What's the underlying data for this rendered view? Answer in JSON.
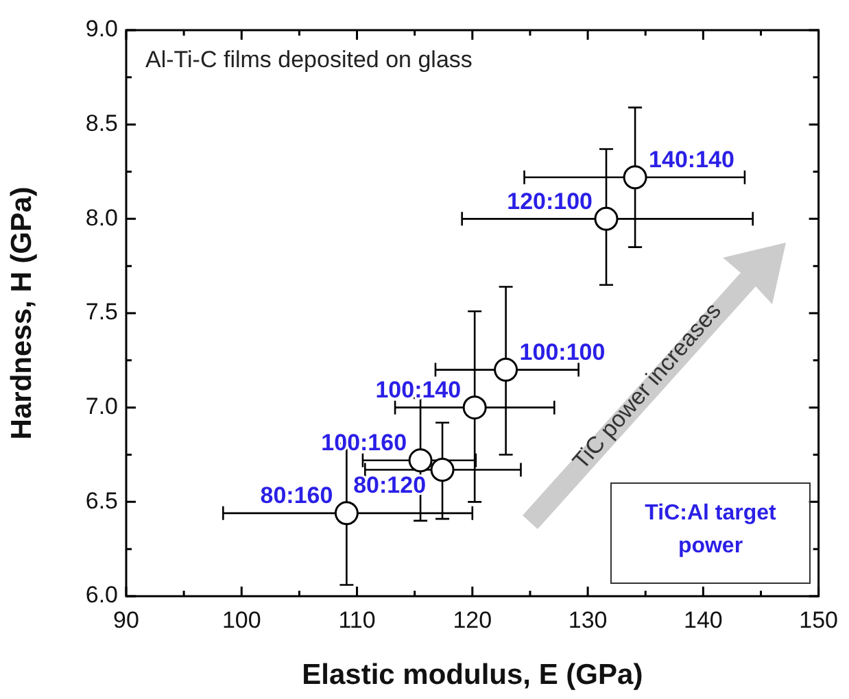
{
  "chart_data": {
    "type": "scatter",
    "xlabel": "Elastic modulus, E (GPa)",
    "ylabel": "Hardness, H (GPa)",
    "x": [
      109.1,
      115.5,
      117.4,
      120.2,
      122.9,
      131.6,
      134.1
    ],
    "values": [
      6.44,
      6.72,
      6.67,
      7.0,
      7.2,
      8.0,
      8.22
    ],
    "value_labels": [
      "80:160",
      "100:160",
      "80:120",
      "100:140",
      "100:100",
      "120:100",
      "140:140"
    ],
    "errors": [
      [
        6.06,
        6.81
      ],
      [
        6.4,
        7.05
      ],
      [
        6.41,
        6.92
      ],
      [
        6.5,
        7.51
      ],
      [
        6.75,
        7.64
      ],
      [
        7.65,
        8.37
      ],
      [
        7.85,
        8.59
      ]
    ],
    "xerrors": [
      [
        98.4,
        120
      ],
      [
        110.5,
        120.3
      ],
      [
        110.7,
        124.2
      ],
      [
        113.3,
        127.1
      ],
      [
        116.8,
        129.2
      ],
      [
        119.1,
        144.3
      ],
      [
        124.5,
        143.6
      ]
    ],
    "color": "#000000",
    "marker": "circle",
    "grid": false,
    "legend": false,
    "xlim": [
      90,
      150
    ],
    "xticks": [
      90,
      {
        "value": 95,
        "label": null
      },
      100,
      {
        "value": 105,
        "label": null
      },
      110,
      {
        "value": 115,
        "label": null
      },
      120,
      {
        "value": 125,
        "label": null
      },
      130,
      {
        "value": 135,
        "label": null
      },
      140,
      {
        "value": 145,
        "label": null
      },
      150
    ],
    "ylim": [
      6,
      9
    ],
    "yticks": [
      {
        "value": 6,
        "label": "6.0"
      },
      {
        "value": 6.25,
        "label": null
      },
      {
        "value": 6.5,
        "label": "6.5"
      },
      {
        "value": 6.75,
        "label": null
      },
      {
        "value": 7,
        "label": "7.0"
      },
      {
        "value": 7.25,
        "label": null
      },
      {
        "value": 7.5,
        "label": "7.5"
      },
      {
        "value": 7.75,
        "label": null
      },
      {
        "value": 8,
        "label": "8.0"
      },
      {
        "value": 8.25,
        "label": null
      },
      {
        "value": 8.5,
        "label": "8.5"
      },
      {
        "value": 8.75,
        "label": null
      },
      {
        "value": 9,
        "label": "9.0"
      }
    ],
    "annotations": [
      "Al-Ti-C films deposited on glass",
      "TiC power increases",
      "TiC:Al target power"
    ]
  }
}
